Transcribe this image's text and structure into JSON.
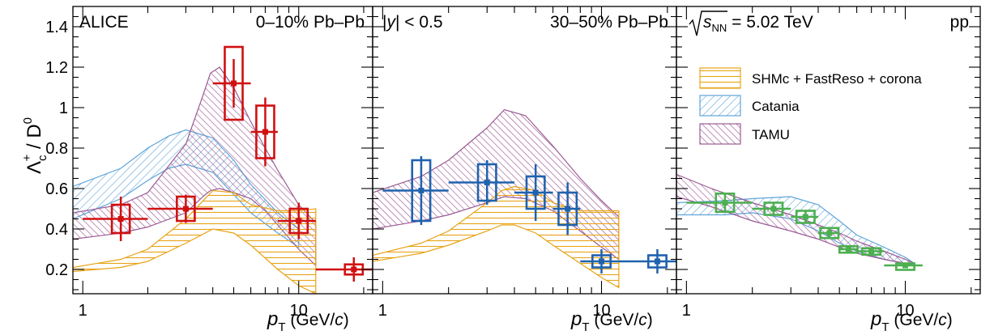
{
  "chart_data": {
    "type": "scatter",
    "ylabel": "Λc+ / D0",
    "ylabel_main": "Λ",
    "ylabel_sub": "c",
    "ylabel_sup": "+",
    "ylabel_tail": " / D",
    "ylabel_tail_sup": "0",
    "xlabel_p": "p",
    "xlabel_sub": "T",
    "xlabel_unit_open": " (GeV/",
    "xlabel_c": "c",
    "xlabel_unit_close": ")",
    "x_scale": "log",
    "xlim": [
      0.9,
      22
    ],
    "ylim": [
      0.08,
      1.5
    ],
    "x_ticklabels": [
      "1",
      "10"
    ],
    "y_ticks": [
      0.2,
      0.4,
      0.6,
      0.8,
      1.0,
      1.2,
      1.4
    ],
    "y_ticklabels": [
      "0.2",
      "0.4",
      "0.6",
      "0.8",
      "1",
      "1.2",
      "1.4"
    ],
    "legend_placement": "right panel, upper center",
    "panels": [
      {
        "text_left": "ALICE",
        "text_right": "0–10% Pb–Pb",
        "data": {
          "name": "ALICE 0–10% Pb–Pb",
          "color": "#d01010",
          "points": [
            {
              "x": 1.5,
              "xlo": 1.0,
              "xhi": 2.0,
              "y": 0.45,
              "stat": 0.11,
              "sys": 0.07
            },
            {
              "x": 3.0,
              "xlo": 2.0,
              "xhi": 4.0,
              "y": 0.5,
              "stat": 0.07,
              "sys": 0.06
            },
            {
              "x": 5.0,
              "xlo": 4.0,
              "xhi": 6.0,
              "y": 1.12,
              "stat": 0.12,
              "sys": 0.18
            },
            {
              "x": 7.0,
              "xlo": 6.0,
              "xhi": 8.0,
              "y": 0.88,
              "stat": 0.17,
              "sys": 0.13
            },
            {
              "x": 10.0,
              "xlo": 8.0,
              "xhi": 12.0,
              "y": 0.44,
              "stat": 0.09,
              "sys": 0.06
            },
            {
              "x": 18.0,
              "xlo": 12.0,
              "xhi": 24.0,
              "y": 0.2,
              "stat": 0.06,
              "sys": 0.025
            }
          ]
        },
        "models": [
          {
            "name": "Catania",
            "x": [
              0.9,
              1.5,
              2.0,
              2.5,
              3.0,
              4.0,
              5.0,
              6.0,
              8.0,
              10.0
            ],
            "lo": [
              0.45,
              0.55,
              0.64,
              0.7,
              0.72,
              0.68,
              0.57,
              0.48,
              0.38,
              0.31
            ],
            "hi": [
              0.61,
              0.7,
              0.8,
              0.86,
              0.89,
              0.85,
              0.74,
              0.62,
              0.48,
              0.4
            ]
          },
          {
            "name": "TAMU",
            "x": [
              0.9,
              1.5,
              2.0,
              3.0,
              3.6,
              3.9,
              4.3,
              5.0,
              6.0,
              7.0,
              8.0,
              10.0,
              12.0
            ],
            "lo": [
              0.35,
              0.38,
              0.41,
              0.48,
              0.56,
              0.59,
              0.6,
              0.58,
              0.55,
              0.49,
              0.42,
              0.3,
              0.22
            ],
            "hi": [
              0.48,
              0.52,
              0.58,
              0.82,
              1.06,
              1.17,
              1.2,
              1.1,
              0.93,
              0.8,
              0.69,
              0.52,
              0.43
            ]
          },
          {
            "name": "SHMc + FastReso + corona",
            "x": [
              0.9,
              1.5,
              2.0,
              3.0,
              4.0,
              5.0,
              6.0,
              8.0,
              10.0,
              12.0
            ],
            "lo": [
              0.19,
              0.21,
              0.24,
              0.33,
              0.4,
              0.38,
              0.32,
              0.2,
              0.12,
              0.08
            ],
            "hi": [
              0.21,
              0.25,
              0.3,
              0.45,
              0.59,
              0.58,
              0.52,
              0.49,
              0.49,
              0.5
            ]
          }
        ]
      },
      {
        "text_left": "|y| < 0.5",
        "text_left_y": "y",
        "text_left_pre": "|",
        "text_left_post": "| < 0.5",
        "text_right": "30–50% Pb–Pb",
        "data": {
          "name": "ALICE 30–50% Pb–Pb",
          "color": "#1f62ae",
          "points": [
            {
              "x": 1.5,
              "xlo": 1.0,
              "xhi": 2.0,
              "y": 0.59,
              "stat": 0.17,
              "sys": 0.15
            },
            {
              "x": 3.0,
              "xlo": 2.0,
              "xhi": 4.0,
              "y": 0.63,
              "stat": 0.11,
              "sys": 0.09
            },
            {
              "x": 5.0,
              "xlo": 4.0,
              "xhi": 6.0,
              "y": 0.58,
              "stat": 0.14,
              "sys": 0.08
            },
            {
              "x": 7.0,
              "xlo": 6.0,
              "xhi": 8.0,
              "y": 0.5,
              "stat": 0.13,
              "sys": 0.08
            },
            {
              "x": 10.0,
              "xlo": 8.0,
              "xhi": 12.0,
              "y": 0.24,
              "stat": 0.06,
              "sys": 0.03
            },
            {
              "x": 18.0,
              "xlo": 12.0,
              "xhi": 24.0,
              "y": 0.24,
              "stat": 0.06,
              "sys": 0.03
            }
          ]
        },
        "models": [
          {
            "name": "TAMU",
            "x": [
              0.9,
              1.5,
              2.0,
              3.0,
              3.6,
              4.5,
              6.0,
              8.0,
              10.0,
              12.0
            ],
            "lo": [
              0.4,
              0.44,
              0.47,
              0.53,
              0.56,
              0.55,
              0.49,
              0.39,
              0.31,
              0.25
            ],
            "hi": [
              0.58,
              0.66,
              0.74,
              0.9,
              0.99,
              0.96,
              0.81,
              0.65,
              0.54,
              0.46
            ]
          },
          {
            "name": "SHMc + FastReso + corona",
            "x": [
              0.9,
              1.5,
              2.0,
              3.0,
              3.5,
              4.0,
              5.0,
              6.0,
              8.0,
              10.0,
              12.0
            ],
            "lo": [
              0.24,
              0.28,
              0.32,
              0.39,
              0.42,
              0.42,
              0.38,
              0.32,
              0.23,
              0.16,
              0.11
            ],
            "hi": [
              0.27,
              0.33,
              0.39,
              0.53,
              0.59,
              0.61,
              0.59,
              0.53,
              0.49,
              0.49,
              0.49
            ]
          }
        ]
      },
      {
        "text_left": "√sNN = 5.02 TeV",
        "sqrt_s": "s",
        "sqrt_sub": "NN",
        "sqrt_value": " = 5.02 TeV",
        "text_right": "pp",
        "data": {
          "name": "ALICE pp",
          "color": "#4caf50",
          "points": [
            {
              "x": 1.5,
              "xlo": 1.0,
              "xhi": 2.0,
              "y": 0.53,
              "stat": 0.045,
              "sys": 0.045
            },
            {
              "x": 2.5,
              "xlo": 2.0,
              "xhi": 3.0,
              "y": 0.5,
              "stat": 0.03,
              "sys": 0.03
            },
            {
              "x": 3.5,
              "xlo": 3.0,
              "xhi": 4.0,
              "y": 0.46,
              "stat": 0.03,
              "sys": 0.03
            },
            {
              "x": 4.5,
              "xlo": 4.0,
              "xhi": 5.0,
              "y": 0.38,
              "stat": 0.02,
              "sys": 0.025
            },
            {
              "x": 5.5,
              "xlo": 5.0,
              "xhi": 6.0,
              "y": 0.3,
              "stat": 0.015,
              "sys": 0.015
            },
            {
              "x": 7.0,
              "xlo": 6.0,
              "xhi": 8.0,
              "y": 0.29,
              "stat": 0.015,
              "sys": 0.015
            },
            {
              "x": 10.0,
              "xlo": 8.0,
              "xhi": 12.0,
              "y": 0.22,
              "stat": 0.01,
              "sys": 0.01
            }
          ]
        },
        "models": [
          {
            "name": "Catania",
            "x": [
              0.9,
              1.5,
              2.0,
              3.0,
              4.0,
              5.0,
              6.0,
              8.0,
              10.0,
              11.0
            ],
            "lo": [
              0.47,
              0.47,
              0.48,
              0.45,
              0.39,
              0.33,
              0.29,
              0.25,
              0.23,
              0.22
            ],
            "hi": [
              0.53,
              0.54,
              0.55,
              0.56,
              0.52,
              0.44,
              0.37,
              0.31,
              0.26,
              0.23
            ]
          },
          {
            "name": "TAMU",
            "x": [
              0.9,
              1.3,
              2.0,
              3.0,
              4.0,
              5.0,
              6.0,
              8.0,
              10.0,
              11.0
            ],
            "lo": [
              0.56,
              0.51,
              0.44,
              0.39,
              0.35,
              0.31,
              0.28,
              0.25,
              0.23,
              0.22
            ],
            "hi": [
              0.67,
              0.6,
              0.53,
              0.47,
              0.42,
              0.38,
              0.34,
              0.29,
              0.25,
              0.23
            ]
          }
        ]
      }
    ],
    "legend": [
      {
        "name": "SHMc + FastReso + corona",
        "color": "#e8a317",
        "pattern": "horizontal"
      },
      {
        "name": "Catania",
        "color": "#5fa4d8",
        "pattern": "diagonal-down"
      },
      {
        "name": "TAMU",
        "color": "#9b5a94",
        "pattern": "diagonal-up"
      }
    ]
  }
}
